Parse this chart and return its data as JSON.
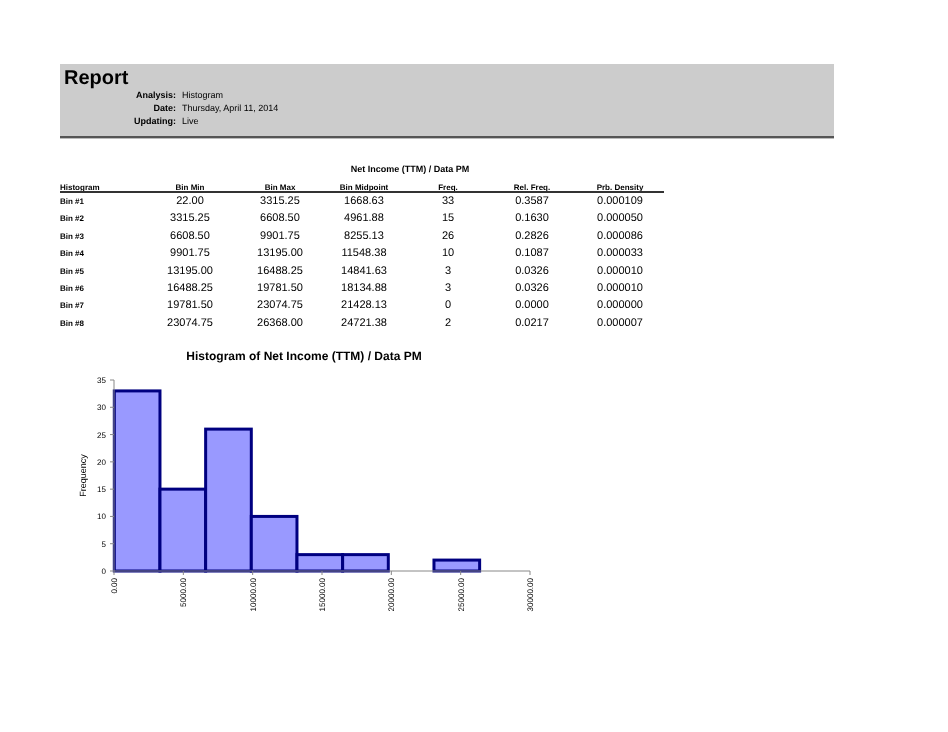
{
  "chart_data": {
    "type": "histogram",
    "title": "Histogram of Net Income (TTM) / Data PM",
    "ylabel": "Frequency",
    "bins": [
      22.0,
      3315.25,
      6608.5,
      9901.75,
      13195.0,
      16488.25,
      19781.5,
      23074.75,
      26368.0
    ],
    "values": [
      33,
      15,
      26,
      10,
      3,
      3,
      0,
      2
    ],
    "color": "#9999ff",
    "xlim": [
      0,
      30000
    ],
    "xticks": [
      {
        "value": 0,
        "label": "0.00"
      },
      {
        "value": 5000,
        "label": "5000.00"
      },
      {
        "value": 10000,
        "label": "10000.00"
      },
      {
        "value": 15000,
        "label": "15000.00"
      },
      {
        "value": 20000,
        "label": "20000.00"
      },
      {
        "value": 25000,
        "label": "25000.00"
      },
      {
        "value": 30000,
        "label": "30000.00"
      }
    ],
    "ylim": [
      0,
      35
    ],
    "yticks": [
      0,
      5,
      10,
      15,
      20,
      25,
      30,
      35
    ],
    "grid": false,
    "annotations": [
      "Report",
      "Analysis:",
      "Histogram",
      "Date:",
      "Thursday, April 11, 2014",
      "Updating:",
      "Live",
      "Net Income (TTM) / Data PM",
      "Histogram",
      "Bin Min",
      "Bin Max",
      "Bin Midpoint",
      "Freq.",
      "Rel. Freq.",
      "Prb. Density",
      "Bin #1",
      "22.00",
      "3315.25",
      "1668.63",
      "33",
      "0.3587",
      "0.000109",
      "Bin #2",
      "3315.25",
      "6608.50",
      "4961.88",
      "15",
      "0.1630",
      "0.000050",
      "Bin #3",
      "6608.50",
      "9901.75",
      "8255.13",
      "26",
      "0.2826",
      "0.000086",
      "Bin #4",
      "9901.75",
      "13195.00",
      "11548.38",
      "10",
      "0.1087",
      "0.000033",
      "Bin #5",
      "13195.00",
      "16488.25",
      "14841.63",
      "3",
      "0.0326",
      "0.000010",
      "Bin #6",
      "16488.25",
      "19781.50",
      "18134.88",
      "3",
      "0.0326",
      "0.000010",
      "Bin #7",
      "19781.50",
      "23074.75",
      "21428.13",
      "0",
      "0.0000",
      "0.000000",
      "Bin #8",
      "23074.75",
      "26368.00",
      "24721.38",
      "2",
      "0.0217",
      "0.000007"
    ]
  }
}
